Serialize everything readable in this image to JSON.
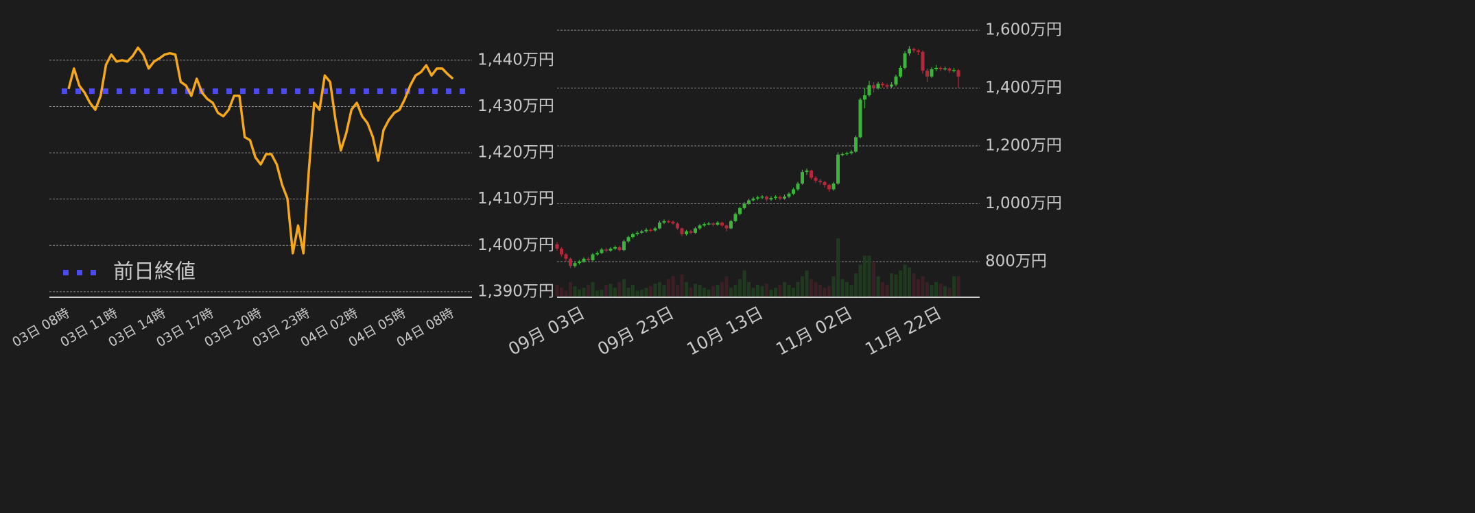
{
  "chart_data": [
    {
      "type": "line",
      "categories": [
        "03日 08時",
        null,
        null,
        null,
        null,
        null,
        null,
        null,
        null,
        "03日 11時",
        null,
        null,
        null,
        null,
        null,
        null,
        null,
        null,
        "03日 14時",
        null,
        null,
        null,
        null,
        null,
        null,
        null,
        null,
        "03日 17時",
        null,
        null,
        null,
        null,
        null,
        null,
        null,
        null,
        "03日 20時",
        null,
        null,
        null,
        null,
        null,
        null,
        null,
        null,
        "03日 23時",
        null,
        null,
        null,
        null,
        null,
        null,
        null,
        null,
        "04日 02時",
        null,
        null,
        null,
        null,
        null,
        null,
        null,
        null,
        "04日 05時",
        null,
        null,
        null,
        null,
        null,
        null,
        null,
        null,
        "04日 08時"
      ],
      "series": [
        {
          "color": "#f5a81c",
          "values": [
            1433.8,
            1438.2,
            1434.5,
            1433,
            1430.8,
            1429.3,
            1432.3,
            1439,
            1441.2,
            1439.7,
            1440,
            1439.7,
            1440.9,
            1442.7,
            1441.2,
            1438.2,
            1439.7,
            1440.4,
            1441.2,
            1441.5,
            1441.2,
            1435.3,
            1434.5,
            1432.3,
            1436,
            1433,
            1431.6,
            1430.8,
            1428.6,
            1427.9,
            1429.3,
            1432.3,
            1432.3,
            1423.4,
            1422.7,
            1419,
            1417.5,
            1419.7,
            1419.7,
            1417.5,
            1413.1,
            1410.1,
            1398.3,
            1404.3,
            1398.3,
            1416,
            1430.8,
            1429.3,
            1436.7,
            1435.3,
            1427.1,
            1420.5,
            1424.2,
            1429.3,
            1430.8,
            1427.9,
            1426.4,
            1423.4,
            1418.3,
            1424.9,
            1427.1,
            1428.6,
            1429.3,
            1431.6,
            1434.5,
            1436.7,
            1437.4,
            1438.9,
            1436.7,
            1438.2,
            1438.2,
            1437,
            1436
          ]
        }
      ],
      "reference": {
        "name": "前日終値",
        "value": 1433.3,
        "color": "#4a4af0"
      },
      "legend": "bottom-left",
      "ylim": [
        1388.8,
        1445.6
      ],
      "yticks": [
        {
          "value": 1390,
          "label": "1,390万円"
        },
        {
          "value": 1400,
          "label": "1,400万円"
        },
        {
          "value": 1410,
          "label": "1,410万円"
        },
        {
          "value": 1420,
          "label": "1,420万円"
        },
        {
          "value": 1430,
          "label": "1,430万円"
        },
        {
          "value": 1440,
          "label": "1,440万円"
        }
      ],
      "grid": true
    },
    {
      "type": "candlestick",
      "categories": [
        null,
        null,
        null,
        null,
        null,
        null,
        "09月 03日",
        null,
        null,
        null,
        null,
        null,
        null,
        null,
        null,
        null,
        null,
        null,
        null,
        null,
        null,
        null,
        null,
        null,
        null,
        null,
        "09月 23日",
        null,
        null,
        null,
        null,
        null,
        null,
        null,
        null,
        null,
        null,
        null,
        null,
        null,
        null,
        null,
        null,
        null,
        null,
        null,
        "10月 13日",
        null,
        null,
        null,
        null,
        null,
        null,
        null,
        null,
        null,
        null,
        null,
        null,
        null,
        null,
        null,
        null,
        null,
        null,
        null,
        "11月 02日",
        null,
        null,
        null,
        null,
        null,
        null,
        null,
        null,
        null,
        null,
        null,
        null,
        null,
        null,
        null,
        null,
        null,
        null,
        null,
        "11月 22日",
        null,
        null,
        null,
        null
      ],
      "open": [
        860,
        845,
        825,
        810,
        785,
        795,
        800,
        810,
        805,
        825,
        830,
        842,
        838,
        845,
        850,
        840,
        870,
        885,
        895,
        900,
        905,
        910,
        908,
        915,
        935,
        940,
        938,
        932,
        915,
        895,
        905,
        900,
        915,
        925,
        930,
        932,
        928,
        935,
        925,
        915,
        940,
        965,
        985,
        1000,
        1012,
        1018,
        1022,
        1025,
        1015,
        1020,
        1024,
        1018,
        1025,
        1035,
        1050,
        1070,
        1110,
        1115,
        1090,
        1080,
        1075,
        1065,
        1050,
        1070,
        1170,
        1172,
        1175,
        1180,
        1230,
        1360,
        1375,
        1410,
        1400,
        1415,
        1410,
        1405,
        1412,
        1440,
        1470,
        1520,
        1535,
        1530,
        1525,
        1460,
        1440,
        1465,
        1470,
        1465,
        1468,
        1460,
        1462
      ],
      "high": [
        868,
        850,
        830,
        815,
        800,
        806,
        815,
        816,
        830,
        836,
        848,
        848,
        850,
        856,
        855,
        876,
        890,
        900,
        906,
        910,
        916,
        915,
        920,
        942,
        946,
        944,
        942,
        936,
        918,
        910,
        910,
        920,
        930,
        936,
        938,
        937,
        940,
        938,
        928,
        945,
        970,
        990,
        1006,
        1018,
        1024,
        1028,
        1030,
        1028,
        1026,
        1030,
        1028,
        1032,
        1040,
        1056,
        1076,
        1118,
        1122,
        1118,
        1096,
        1086,
        1080,
        1070,
        1076,
        1178,
        1178,
        1180,
        1186,
        1236,
        1366,
        1400,
        1425,
        1420,
        1422,
        1420,
        1416,
        1420,
        1446,
        1478,
        1528,
        1545,
        1540,
        1535,
        1530,
        1468,
        1472,
        1480,
        1475,
        1474,
        1472,
        1470,
        1466
      ],
      "low": [
        838,
        818,
        800,
        778,
        780,
        790,
        796,
        800,
        800,
        820,
        826,
        832,
        834,
        840,
        835,
        836,
        865,
        880,
        890,
        896,
        900,
        903,
        904,
        912,
        930,
        933,
        928,
        910,
        888,
        890,
        895,
        896,
        910,
        920,
        926,
        922,
        924,
        920,
        905,
        912,
        936,
        960,
        980,
        996,
        1008,
        1012,
        1016,
        1008,
        1010,
        1014,
        1012,
        1014,
        1020,
        1030,
        1045,
        1066,
        1100,
        1084,
        1072,
        1066,
        1056,
        1042,
        1045,
        1066,
        1164,
        1166,
        1170,
        1176,
        1226,
        1330,
        1370,
        1385,
        1395,
        1402,
        1398,
        1400,
        1406,
        1435,
        1465,
        1512,
        1522,
        1515,
        1450,
        1420,
        1435,
        1458,
        1458,
        1460,
        1452,
        1454,
        1400
      ],
      "close": [
        845,
        825,
        810,
        785,
        795,
        800,
        810,
        805,
        825,
        830,
        842,
        838,
        845,
        850,
        840,
        870,
        885,
        895,
        900,
        905,
        910,
        908,
        915,
        935,
        940,
        938,
        932,
        915,
        895,
        905,
        900,
        915,
        925,
        930,
        932,
        928,
        935,
        925,
        915,
        940,
        965,
        985,
        1000,
        1012,
        1018,
        1022,
        1025,
        1015,
        1020,
        1024,
        1018,
        1025,
        1035,
        1050,
        1070,
        1110,
        1115,
        1090,
        1080,
        1075,
        1065,
        1050,
        1070,
        1170,
        1172,
        1175,
        1180,
        1230,
        1360,
        1375,
        1410,
        1400,
        1415,
        1410,
        1405,
        1412,
        1440,
        1470,
        1520,
        1535,
        1530,
        1525,
        1460,
        1440,
        1465,
        1470,
        1465,
        1468,
        1460,
        1462,
        1440
      ],
      "volume": [
        20,
        15,
        10,
        25,
        18,
        12,
        15,
        20,
        25,
        10,
        12,
        20,
        22,
        15,
        25,
        30,
        15,
        20,
        10,
        12,
        15,
        18,
        22,
        25,
        20,
        30,
        35,
        20,
        38,
        25,
        15,
        22,
        20,
        15,
        12,
        18,
        20,
        25,
        35,
        15,
        20,
        30,
        45,
        25,
        15,
        20,
        18,
        22,
        12,
        15,
        20,
        25,
        20,
        15,
        25,
        35,
        45,
        30,
        25,
        20,
        15,
        18,
        35,
        100,
        30,
        25,
        20,
        40,
        55,
        70,
        70,
        60,
        35,
        25,
        20,
        40,
        38,
        45,
        55,
        50,
        40,
        30,
        35,
        25,
        20,
        25,
        22,
        18,
        15,
        35,
        35
      ],
      "up_color": "#3cb43c",
      "down_color": "#b4283c",
      "up_volume_color": "#1f3a1f",
      "down_volume_color": "#3a2024",
      "ylim": [
        677,
        1657
      ],
      "yticks": [
        {
          "value": 800,
          "label": "800万円"
        },
        {
          "value": 1000,
          "label": "1,000万円"
        },
        {
          "value": 1200,
          "label": "1,200万円"
        },
        {
          "value": 1400,
          "label": "1,400万円"
        },
        {
          "value": 1600,
          "label": "1,600万円"
        }
      ],
      "grid": true
    }
  ]
}
